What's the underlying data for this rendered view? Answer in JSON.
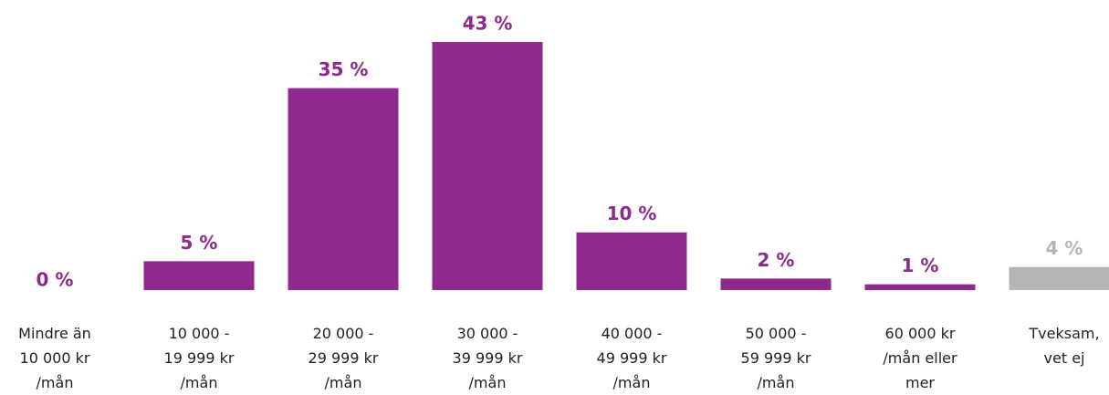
{
  "chart_data": {
    "type": "bar",
    "categories": [
      "Mindre än\n10 000 kr\n/mån",
      "10 000 -\n19 999 kr\n/mån",
      "20 000 -\n29 999 kr\n/mån",
      "30 000 -\n39 999 kr\n/mån",
      "40 000 -\n49 999 kr\n/mån",
      "50 000 -\n59 999 kr\n/mån",
      "60 000 kr\n/mån eller\nmer",
      "Tveksam,\nvet ej"
    ],
    "values": [
      0,
      5,
      35,
      43,
      10,
      2,
      1,
      4
    ],
    "value_labels": [
      "0 %",
      "5 %",
      "35 %",
      "43 %",
      "10 %",
      "2 %",
      "1 %",
      "4 %"
    ],
    "colors": [
      "#8e2a8e",
      "#8e2a8e",
      "#8e2a8e",
      "#8e2a8e",
      "#8e2a8e",
      "#8e2a8e",
      "#8e2a8e",
      "#b4b5b7"
    ]
  }
}
